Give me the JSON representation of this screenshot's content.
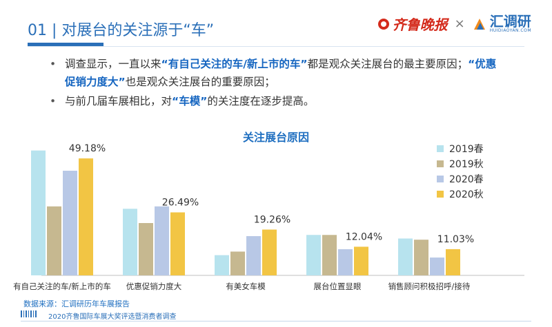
{
  "header": {
    "title": "01 | 对展台的关注源于“车”",
    "logo_left": "齐鲁晚报",
    "logo_sep": "×",
    "logo_right": "汇调研",
    "logo_right_sub": "HUIDIAOYAN.COM"
  },
  "bullets": [
    {
      "pre": "调查显示，一直以来",
      "hl1": "“有自己关注的车/新上市的车”",
      "mid": "都是观众关注展台的最主要原因；",
      "hl2": "“优惠促销力度大”",
      "post": "也是观众关注展台的重要原因；"
    },
    {
      "pre": "与前几届车展相比，对",
      "hl1": "“车模”",
      "post": "的关注度在逐步提高。"
    }
  ],
  "footer": {
    "source": "数据来源：汇调研历年车展报告",
    "report": "2020齐鲁国际车展大奖评选暨消费者调查"
  },
  "chart_data": {
    "type": "bar",
    "title": "关注展台原因",
    "categories": [
      "有自己关注的车/新上市的车",
      "优惠促销力度大",
      "有美女车模",
      "展台位置显眼",
      "销售顾问积极招呼/接待"
    ],
    "series": [
      {
        "name": "2019春",
        "color": "#b7e3ee",
        "values": [
          52.5,
          28.0,
          8.5,
          17.0,
          15.5
        ]
      },
      {
        "name": "2019秋",
        "color": "#c6b890",
        "values": [
          29.0,
          22.0,
          10.0,
          17.0,
          15.0
        ]
      },
      {
        "name": "2020春",
        "color": "#b8c8e6",
        "values": [
          44.0,
          29.0,
          16.5,
          11.0,
          7.5
        ]
      },
      {
        "name": "2020秋",
        "color": "#f2c544",
        "values": [
          49.18,
          26.49,
          19.26,
          12.04,
          11.03
        ]
      }
    ],
    "data_labels": [
      "49.18%",
      "26.49%",
      "19.26%",
      "12.04%",
      "11.03%"
    ],
    "ylim": [
      0,
      55
    ],
    "legend": "top-right",
    "grid": false
  }
}
